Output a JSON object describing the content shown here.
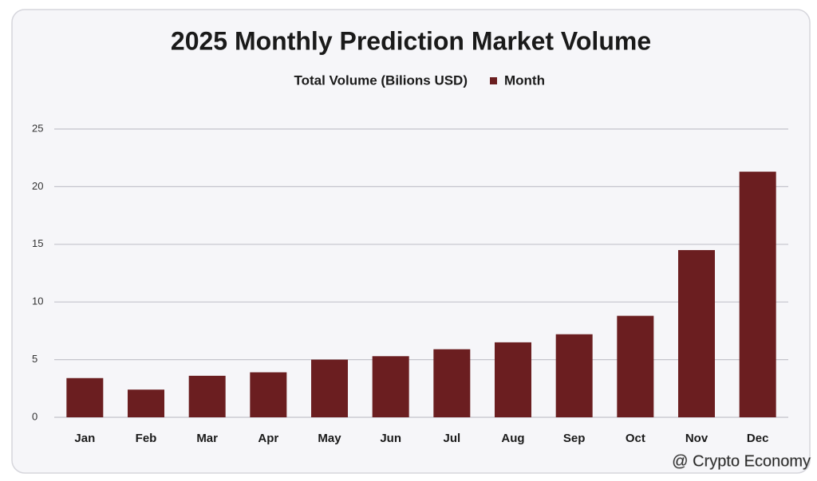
{
  "chart_data": {
    "type": "bar",
    "title": "2025 Monthly Prediction Market Volume",
    "legend_title": "Total Volume (Bilions USD)",
    "categories": [
      "Jan",
      "Feb",
      "Mar",
      "Apr",
      "May",
      "Jun",
      "Jul",
      "Aug",
      "Sep",
      "Oct",
      "Nov",
      "Dec"
    ],
    "series": [
      {
        "name": "Month",
        "color": "#6b1e20",
        "values": [
          3.4,
          2.4,
          3.6,
          3.9,
          5.0,
          5.3,
          5.9,
          6.5,
          7.2,
          8.8,
          14.5,
          21.3
        ]
      }
    ],
    "ylim": [
      0,
      25
    ],
    "yticks": [
      0,
      5,
      10,
      15,
      20,
      25
    ],
    "grid": true,
    "watermark": "@ Crypto Economy"
  }
}
